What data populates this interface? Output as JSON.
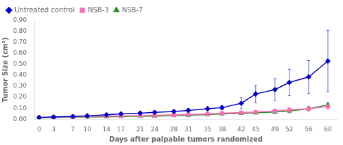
{
  "chart_data": {
    "type": "line",
    "xlabel": "Days after palpable tumors randomized",
    "ylabel": "Tumor Size (cm³)",
    "x": [
      0,
      3,
      7,
      10,
      14,
      17,
      21,
      24,
      28,
      31,
      35,
      38,
      42,
      45,
      49,
      52,
      56,
      60
    ],
    "series": [
      {
        "name": "Untreated control",
        "color": "#0000CD",
        "marker": "diamond",
        "values": [
          0.015,
          0.02,
          0.025,
          0.03,
          0.04,
          0.048,
          0.055,
          0.062,
          0.07,
          0.08,
          0.095,
          0.105,
          0.145,
          0.23,
          0.27,
          0.335,
          0.385,
          0.53
        ],
        "errors": [
          0.005,
          0.005,
          0.005,
          0.005,
          0.008,
          0.01,
          0.01,
          0.012,
          0.013,
          0.015,
          0.018,
          0.02,
          0.05,
          0.08,
          0.1,
          0.12,
          0.15,
          0.28
        ]
      },
      {
        "name": "NSB-3",
        "color": "#FF69B4",
        "marker": "square",
        "values": [
          0.015,
          0.018,
          0.022,
          0.025,
          0.028,
          0.03,
          0.032,
          0.035,
          0.038,
          0.042,
          0.048,
          0.055,
          0.06,
          0.065,
          0.075,
          0.085,
          0.095,
          0.115
        ],
        "errors": [
          0.003,
          0.003,
          0.004,
          0.004,
          0.005,
          0.005,
          0.005,
          0.006,
          0.006,
          0.007,
          0.008,
          0.01,
          0.012,
          0.015,
          0.018,
          0.02,
          0.022,
          0.025
        ]
      },
      {
        "name": "NSB-7",
        "color": "#228B22",
        "marker": "triangle",
        "values": [
          0.012,
          0.015,
          0.018,
          0.02,
          0.022,
          0.025,
          0.027,
          0.028,
          0.032,
          0.036,
          0.042,
          0.048,
          0.052,
          0.058,
          0.065,
          0.075,
          0.095,
          0.13
        ],
        "errors": [
          0.003,
          0.003,
          0.003,
          0.004,
          0.004,
          0.005,
          0.005,
          0.005,
          0.006,
          0.007,
          0.008,
          0.009,
          0.01,
          0.012,
          0.015,
          0.018,
          0.02,
          0.022
        ]
      }
    ],
    "xlim": [
      -1,
      62
    ],
    "xticks": [
      0,
      3,
      7,
      10,
      14,
      17,
      21,
      24,
      28,
      31,
      35,
      38,
      42,
      45,
      49,
      52,
      56,
      60
    ],
    "ylim": [
      0,
      0.9
    ],
    "yticks": [
      {
        "value": 0,
        "label": "0.00"
      },
      {
        "value": 0.1,
        "label": "0.10"
      },
      {
        "value": 0.2,
        "label": "0.20"
      },
      {
        "value": 0.3,
        "label": "0.30"
      },
      {
        "value": 0.4,
        "label": "0.40"
      },
      {
        "value": 0.5,
        "label": "0.50"
      },
      {
        "value": 0.6,
        "label": "0.60"
      },
      {
        "value": 0.7,
        "label": "0.70"
      },
      {
        "value": 0.8,
        "label": "0.80"
      },
      {
        "value": 0.9,
        "label": "0.90"
      }
    ],
    "grid": false,
    "legend": "upper left"
  }
}
